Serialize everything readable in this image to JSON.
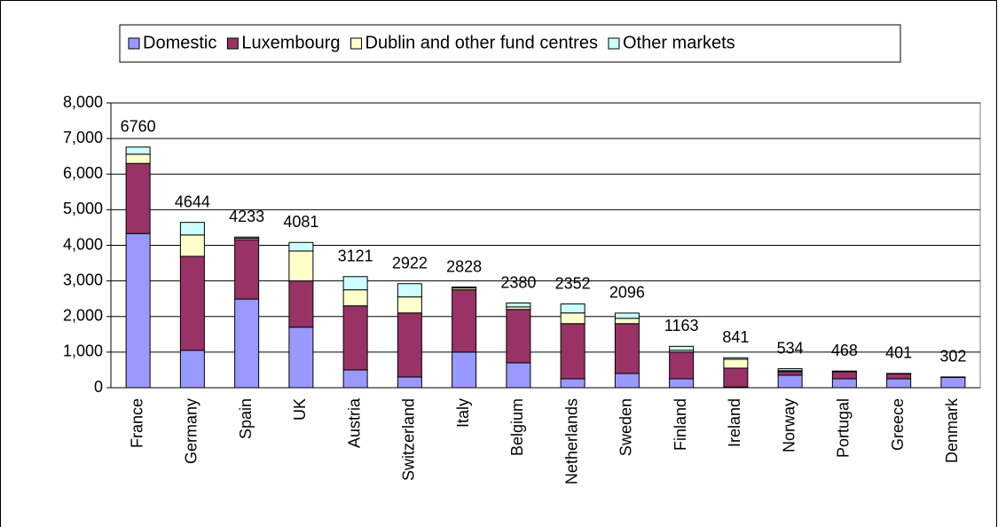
{
  "chart_data": {
    "type": "stacked_bar",
    "categories": [
      "France",
      "Germany",
      "Spain",
      "UK",
      "Austria",
      "Switzerland",
      "Italy",
      "Belgium",
      "Netherlands",
      "Sweden",
      "Finland",
      "Ireland",
      "Norway",
      "Portugal",
      "Greece",
      "Denmark"
    ],
    "series": [
      {
        "name": "Domestic",
        "color": "#9999ff",
        "values": [
          4330,
          1050,
          2490,
          1700,
          500,
          300,
          1000,
          700,
          250,
          400,
          250,
          20,
          350,
          250,
          250,
          290
        ]
      },
      {
        "name": "Luxembourg",
        "color": "#993366",
        "values": [
          1970,
          2640,
          1670,
          1300,
          1800,
          1800,
          1750,
          1500,
          1550,
          1400,
          750,
          530,
          100,
          200,
          140,
          5
        ]
      },
      {
        "name": "Dublin and other fund centres",
        "color": "#ffffcc",
        "values": [
          260,
          600,
          40,
          840,
          450,
          450,
          50,
          70,
          300,
          150,
          50,
          250,
          30,
          10,
          5,
          4
        ]
      },
      {
        "name": "Other markets",
        "color": "#ccffff",
        "values": [
          200,
          354,
          33,
          241,
          371,
          372,
          28,
          110,
          252,
          146,
          113,
          41,
          54,
          8,
          6,
          3
        ]
      }
    ],
    "totals": [
      6760,
      4644,
      4233,
      4081,
      3121,
      2922,
      2828,
      2380,
      2352,
      2096,
      1163,
      841,
      534,
      468,
      401,
      302
    ],
    "ylim": [
      0,
      8000
    ],
    "yticks": [
      0,
      {
        "value": 1000,
        "label": "1,000"
      },
      {
        "value": 2000,
        "label": "2,000"
      },
      {
        "value": 3000,
        "label": "3,000"
      },
      {
        "value": 4000,
        "label": "4,000"
      },
      {
        "value": 5000,
        "label": "5,000"
      },
      {
        "value": 6000,
        "label": "6,000"
      },
      {
        "value": 7000,
        "label": "7,000"
      },
      {
        "value": 8000,
        "label": "8,000"
      }
    ],
    "grid": true,
    "legend": "top"
  }
}
